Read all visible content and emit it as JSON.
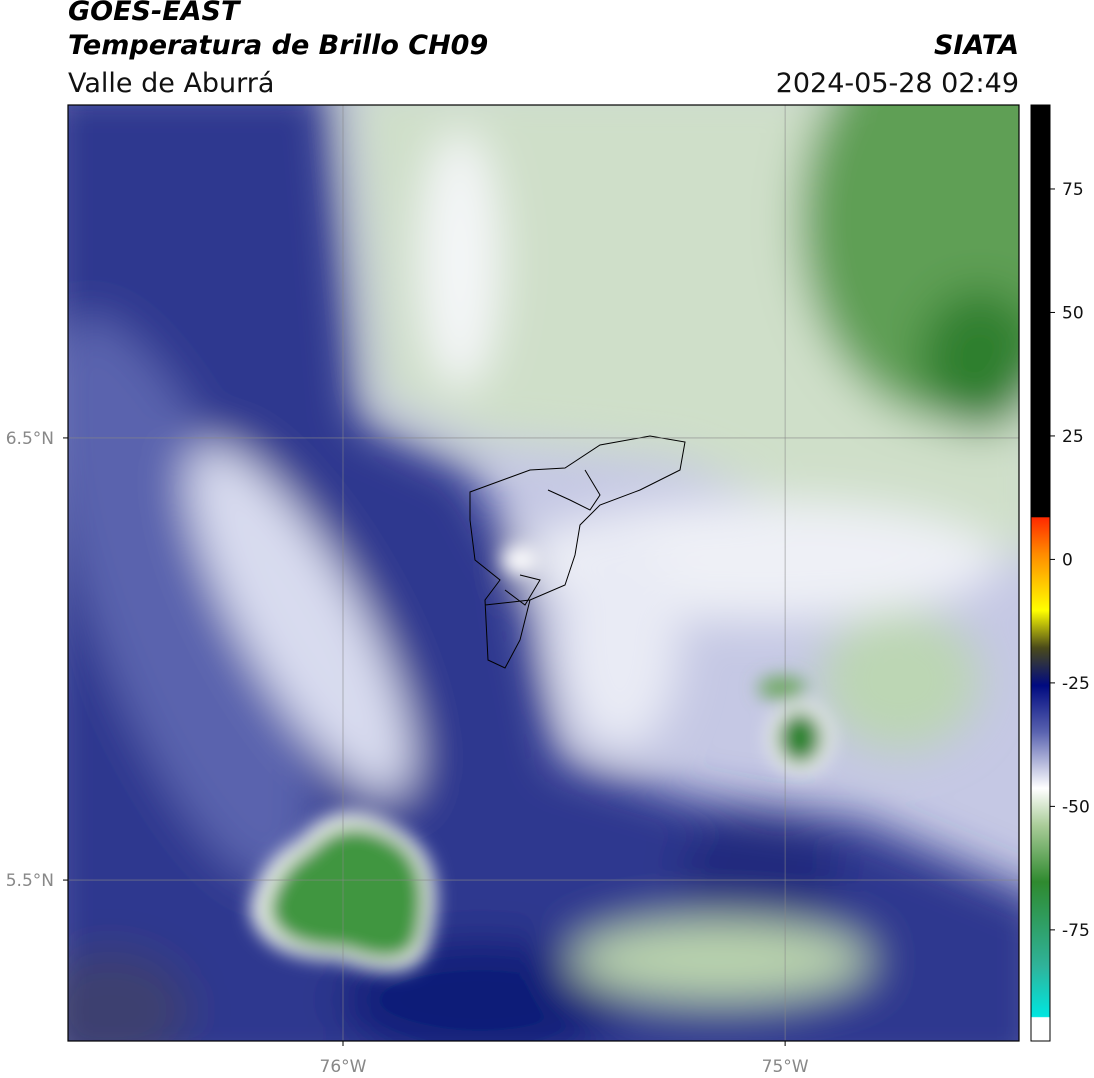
{
  "chart_data": {
    "type": "map",
    "title": "GOES-EAST",
    "subtitle": "Temperatura de Brillo CH09",
    "region": "Valle de Aburrá",
    "source": "SIATA",
    "datetime": "2024-05-28 02:49",
    "xlim": [
      -76.622,
      -74.471
    ],
    "ylim": [
      5.136,
      7.253
    ],
    "xticks": [
      {
        "value": -76,
        "label": "76°W"
      },
      {
        "value": -75,
        "label": "75°W"
      }
    ],
    "yticks": [
      {
        "value": 6.5,
        "label": "6.5°N"
      },
      {
        "value": 5.5,
        "label": "5.5°N"
      }
    ],
    "grid": true,
    "colorbar": {
      "lim": [
        -97.5,
        92
      ],
      "ticks": [
        75,
        50,
        25,
        0,
        -25,
        -50,
        -75
      ]
    }
  }
}
